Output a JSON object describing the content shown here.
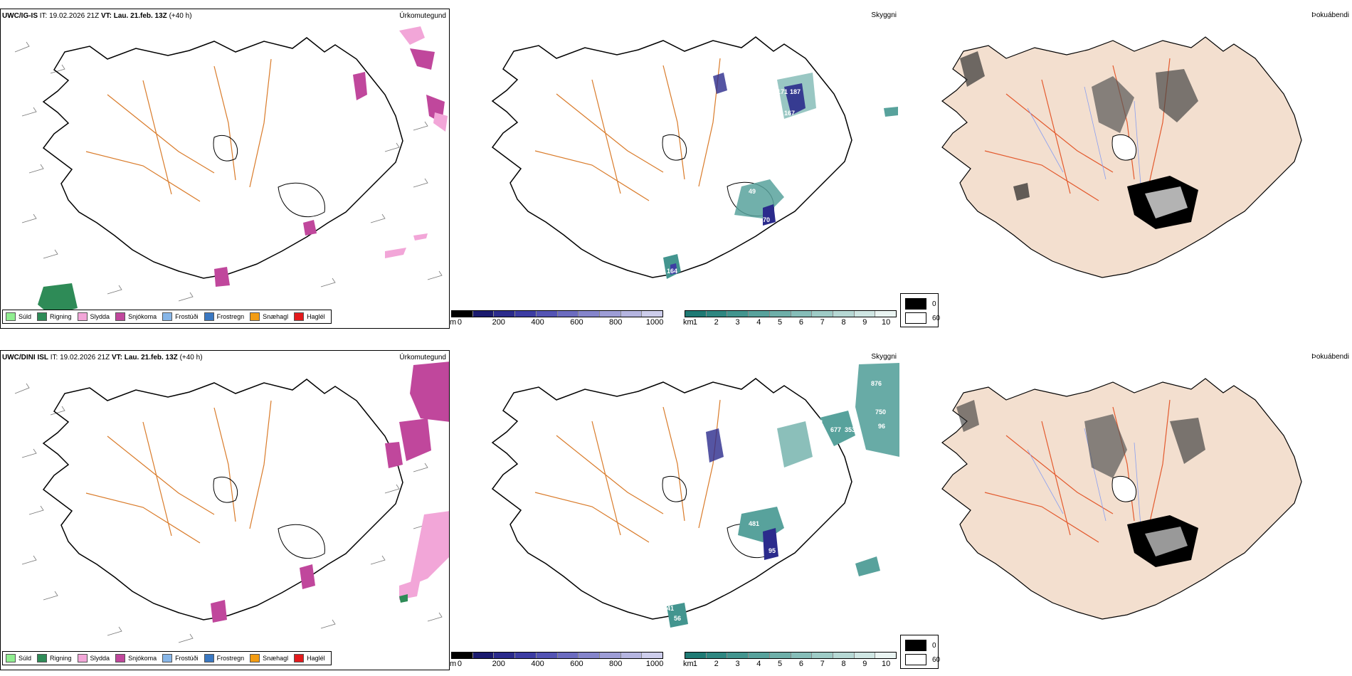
{
  "rows": [
    {
      "model": "UWC/IG-IS",
      "it_label": "IT:",
      "it_value": "19.02.2026 21Z",
      "vt_label": "VT:",
      "vt_value": "Lau. 21.feb. 13Z",
      "lead": "(+40 h)"
    },
    {
      "model": "UWC/DINI ISL",
      "it_label": "IT:",
      "it_value": "19.02.2026 21Z",
      "vt_label": "VT:",
      "vt_value": "Lau. 21.feb. 13Z",
      "lead": "(+40 h)"
    }
  ],
  "panel_titles": {
    "precip_type": "Úrkomutegund",
    "clouds": "Skyggni",
    "fog": "Þokuábendi"
  },
  "precip_legend": [
    {
      "label": "Súld",
      "color": "#90ee90"
    },
    {
      "label": "Rigning",
      "color": "#2e8b57"
    },
    {
      "label": "Slydda",
      "color": "#f2a6d8"
    },
    {
      "label": "Snjókoma",
      "color": "#c0479c"
    },
    {
      "label": "Frostúði",
      "color": "#87b6e8"
    },
    {
      "label": "Frostregn",
      "color": "#3a78c2"
    },
    {
      "label": "Snæhagl",
      "color": "#f39c12"
    },
    {
      "label": "Haglél",
      "color": "#e31a1c"
    }
  ],
  "cbar_height": {
    "unit": "m",
    "ticks": [
      "0",
      "200",
      "400",
      "600",
      "800",
      "1000"
    ],
    "colors": [
      "#000000",
      "#1a1a6e",
      "#2b2b8c",
      "#3d3da3",
      "#5454b4",
      "#6c6cc0",
      "#8585cb",
      "#9d9dd6",
      "#b5b5e0",
      "#cdcdeb"
    ]
  },
  "cbar_vis": {
    "unit": "km",
    "ticks": [
      "1",
      "2",
      "3",
      "4",
      "5",
      "6",
      "7",
      "8",
      "9",
      "10"
    ],
    "colors": [
      "#1f7a74",
      "#2f8781",
      "#43958f",
      "#58a29c",
      "#6eafa9",
      "#86bdb8",
      "#9ecbc6",
      "#b6d8d4",
      "#cfe6e3",
      "#eaf4f2"
    ]
  },
  "fog_legend": [
    {
      "value": "0",
      "color": "#000000"
    },
    {
      "value": "60",
      "color": "#ffffff"
    }
  ],
  "cloud_labels_top": [
    "171",
    "187",
    "167",
    "49",
    "70",
    "164"
  ],
  "cloud_labels_bottom": [
    "876",
    "750",
    "96",
    "181",
    "677",
    "353",
    "481",
    "95",
    "41",
    "56"
  ]
}
